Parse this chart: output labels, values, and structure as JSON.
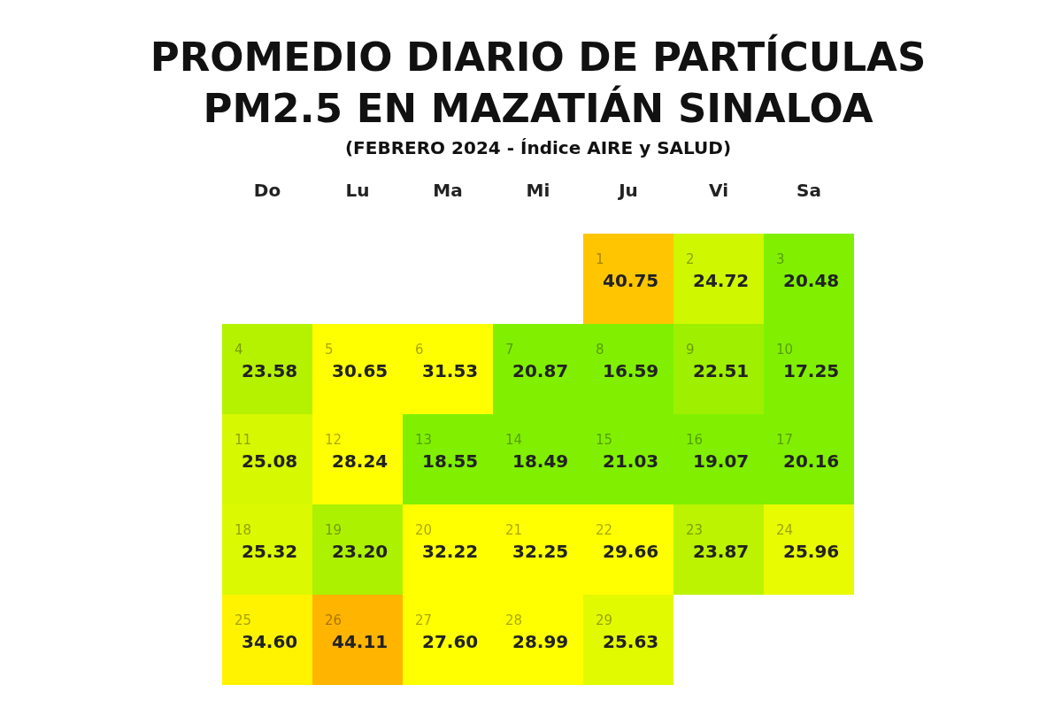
{
  "chart_data": {
    "type": "heatmap",
    "title": "PROMEDIO DIARIO DE PARTÍCULAS PM2.5 EN MAZATIÁN SINALOA",
    "subtitle": "(FEBRERO 2024 - Índice AIRE y SALUD)",
    "categories": [
      "Do",
      "Lu",
      "Ma",
      "Mi",
      "Ju",
      "Vi",
      "Sa"
    ],
    "y_categories": [
      null,
      null,
      null,
      null,
      null
    ],
    "cells": [
      [
        null,
        null,
        null,
        null,
        40.75,
        24.72,
        20.48
      ],
      [
        23.58,
        30.65,
        31.53,
        20.87,
        16.59,
        22.51,
        17.25
      ],
      [
        25.08,
        28.24,
        18.55,
        18.49,
        21.03,
        19.07,
        20.16
      ],
      [
        25.32,
        23.2,
        32.22,
        32.25,
        29.66,
        23.87,
        25.96
      ],
      [
        34.6,
        44.11,
        27.6,
        28.99,
        25.63,
        null,
        null
      ]
    ],
    "annotations": [
      "1",
      "2",
      "3",
      "4",
      "5",
      "6",
      "7",
      "8",
      "9",
      "10",
      "11",
      "12",
      "13",
      "14",
      "15",
      "16",
      "17",
      "18",
      "19",
      "20",
      "21",
      "22",
      "23",
      "24",
      "25",
      "26",
      "27",
      "28",
      "29"
    ],
    "cell_labels": [
      [
        null,
        null,
        null,
        null,
        "40.75",
        "24.72",
        "20.48"
      ],
      [
        "23.58",
        "30.65",
        "31.53",
        "20.87",
        "16.59",
        "22.51",
        "17.25"
      ],
      [
        "25.08",
        "28.24",
        "18.55",
        "18.49",
        "21.03",
        "19.07",
        "20.16"
      ],
      [
        "25.32",
        "23.20",
        "32.22",
        "32.25",
        "29.66",
        "23.87",
        "25.96"
      ],
      [
        "34.60",
        "44.11",
        "27.60",
        "28.99",
        "25.63",
        null,
        null
      ]
    ],
    "data_labels": true
  }
}
